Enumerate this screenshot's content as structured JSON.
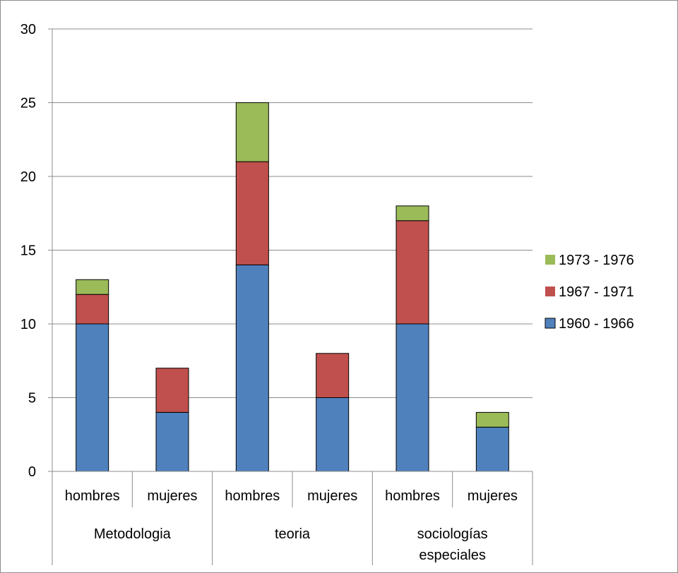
{
  "chart_data": {
    "type": "bar",
    "stacked": true,
    "title": "",
    "xlabel": "",
    "ylabel": "",
    "ylim": [
      0,
      30
    ],
    "y_ticks": [
      0,
      5,
      10,
      15,
      20,
      25,
      30
    ],
    "grid": true,
    "legend_position": "right",
    "categories": [
      "hombres",
      "mujeres",
      "hombres",
      "mujeres",
      "hombres",
      "mujeres"
    ],
    "groups": [
      {
        "label": "Metodologia",
        "categories": [
          "hombres",
          "mujeres"
        ]
      },
      {
        "label": "teoria",
        "categories": [
          "hombres",
          "mujeres"
        ]
      },
      {
        "label_lines": [
          "sociologías",
          "especiales"
        ],
        "categories": [
          "hombres",
          "mujeres"
        ]
      }
    ],
    "series": [
      {
        "name": "1960 - 1966",
        "color": "#4f81bd",
        "values": [
          10,
          4,
          14,
          5,
          10,
          3
        ]
      },
      {
        "name": "1967 - 1971",
        "color": "#c0504d",
        "values": [
          2,
          3,
          7,
          3,
          7,
          0
        ]
      },
      {
        "name": "1973 - 1976",
        "color": "#9bbb59",
        "values": [
          1,
          0,
          4,
          0,
          1,
          1
        ]
      }
    ]
  }
}
